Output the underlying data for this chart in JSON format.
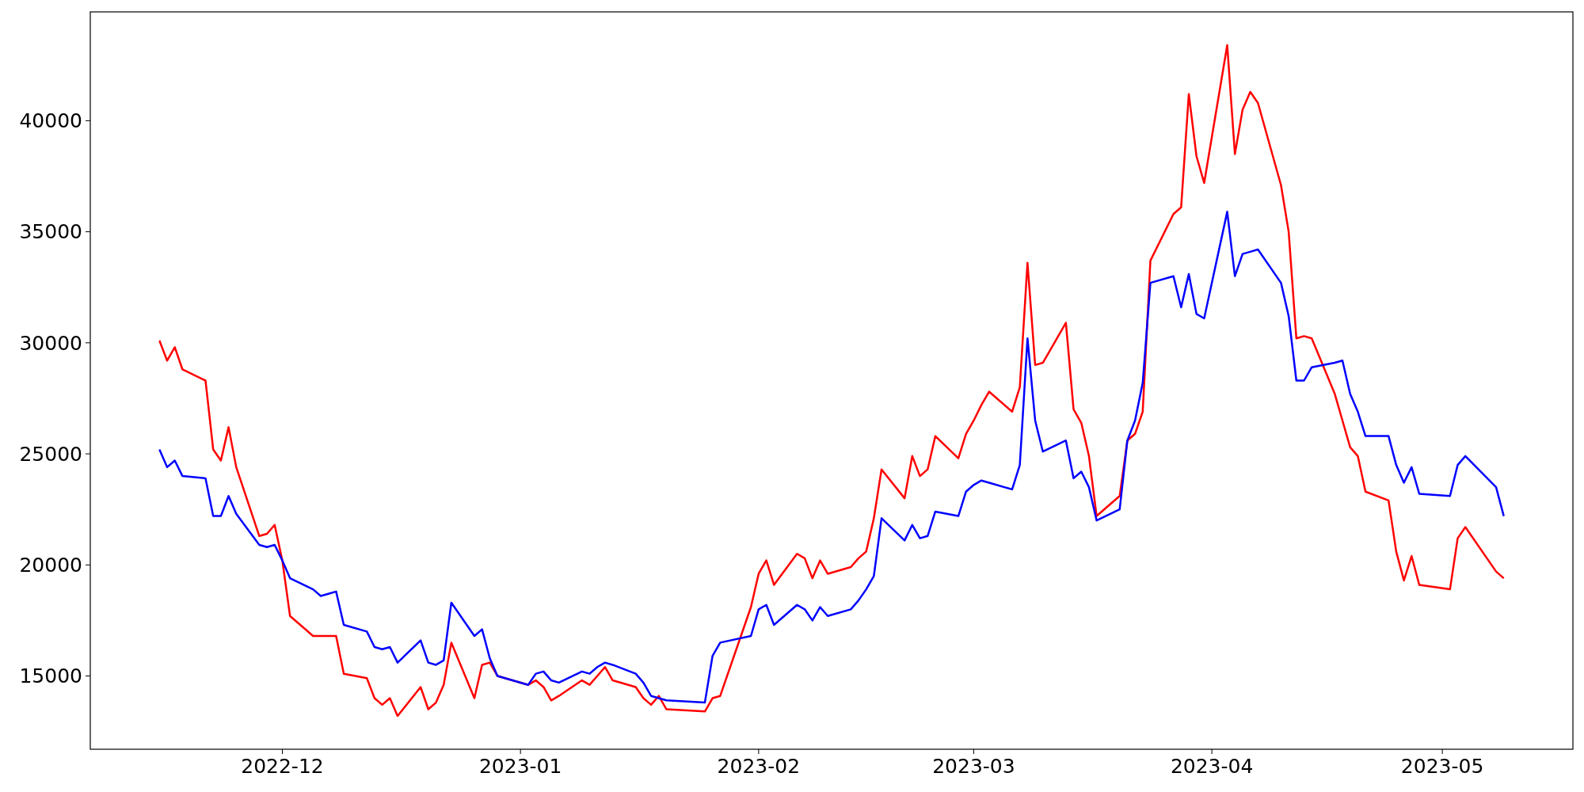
{
  "chart_data": {
    "type": "line",
    "x": [
      "2022-11-15",
      "2022-11-16",
      "2022-11-17",
      "2022-11-18",
      "2022-11-21",
      "2022-11-22",
      "2022-11-23",
      "2022-11-24",
      "2022-11-25",
      "2022-11-28",
      "2022-11-29",
      "2022-11-30",
      "2022-12-01",
      "2022-12-02",
      "2022-12-05",
      "2022-12-06",
      "2022-12-07",
      "2022-12-08",
      "2022-12-09",
      "2022-12-12",
      "2022-12-13",
      "2022-12-14",
      "2022-12-15",
      "2022-12-16",
      "2022-12-19",
      "2022-12-20",
      "2022-12-21",
      "2022-12-22",
      "2022-12-23",
      "2022-12-26",
      "2022-12-27",
      "2022-12-28",
      "2022-12-29",
      "2023-01-02",
      "2023-01-03",
      "2023-01-04",
      "2023-01-05",
      "2023-01-06",
      "2023-01-09",
      "2023-01-10",
      "2023-01-11",
      "2023-01-12",
      "2023-01-13",
      "2023-01-16",
      "2023-01-17",
      "2023-01-18",
      "2023-01-19",
      "2023-01-20",
      "2023-01-25",
      "2023-01-26",
      "2023-01-27",
      "2023-01-31",
      "2023-02-01",
      "2023-02-02",
      "2023-02-03",
      "2023-02-06",
      "2023-02-07",
      "2023-02-08",
      "2023-02-09",
      "2023-02-10",
      "2023-02-13",
      "2023-02-14",
      "2023-02-15",
      "2023-02-16",
      "2023-02-17",
      "2023-02-20",
      "2023-02-21",
      "2023-02-22",
      "2023-02-23",
      "2023-02-24",
      "2023-02-27",
      "2023-02-28",
      "2023-03-01",
      "2023-03-02",
      "2023-03-03",
      "2023-03-06",
      "2023-03-07",
      "2023-03-08",
      "2023-03-09",
      "2023-03-10",
      "2023-03-13",
      "2023-03-14",
      "2023-03-15",
      "2023-03-16",
      "2023-03-17",
      "2023-03-20",
      "2023-03-21",
      "2023-03-22",
      "2023-03-23",
      "2023-03-24",
      "2023-03-27",
      "2023-03-28",
      "2023-03-29",
      "2023-03-30",
      "2023-03-31",
      "2023-04-03",
      "2023-04-04",
      "2023-04-05",
      "2023-04-06",
      "2023-04-07",
      "2023-04-10",
      "2023-04-11",
      "2023-04-12",
      "2023-04-13",
      "2023-04-14",
      "2023-04-17",
      "2023-04-18",
      "2023-04-19",
      "2023-04-20",
      "2023-04-21",
      "2023-04-24",
      "2023-04-25",
      "2023-04-26",
      "2023-04-27",
      "2023-04-28",
      "2023-05-02",
      "2023-05-03",
      "2023-05-04",
      "2023-05-08",
      "2023-05-09"
    ],
    "series": [
      {
        "color": "#ff0000",
        "values": [
          30100,
          29200,
          29800,
          28800,
          28300,
          25200,
          24700,
          26200,
          24400,
          21300,
          21400,
          21800,
          20200,
          17700,
          16800,
          16800,
          16800,
          16800,
          15100,
          14900,
          14000,
          13700,
          14000,
          13200,
          14500,
          13500,
          13800,
          14600,
          16500,
          14000,
          15500,
          15600,
          15000,
          14600,
          14800,
          14500,
          13900,
          14100,
          14800,
          14600,
          15000,
          15400,
          14800,
          14500,
          14000,
          13700,
          14100,
          13500,
          13400,
          14000,
          14100,
          18100,
          19600,
          20200,
          19100,
          20500,
          20300,
          19400,
          20200,
          19600,
          19900,
          20300,
          20600,
          22100,
          24300,
          23000,
          24900,
          24000,
          24300,
          25800,
          24800,
          25900,
          26500,
          27200,
          27800,
          26900,
          28000,
          33600,
          29000,
          29100,
          30900,
          27000,
          26400,
          24900,
          22200,
          23100,
          25600,
          25900,
          26900,
          33700,
          35800,
          36100,
          41200,
          38400,
          37200,
          43400,
          38500,
          40500,
          41300,
          40800,
          37100,
          35000,
          30200,
          30300,
          30200,
          27700,
          26500,
          25300,
          24900,
          23300,
          22900,
          20600,
          19300,
          20400,
          19100,
          18900,
          21200,
          21700,
          19700,
          19400
        ]
      },
      {
        "color": "#0000ff",
        "values": [
          25200,
          24400,
          24700,
          24000,
          23900,
          22200,
          22200,
          23100,
          22300,
          20900,
          20800,
          20900,
          20200,
          19400,
          18900,
          18600,
          18700,
          18800,
          17300,
          17000,
          16300,
          16200,
          16300,
          15600,
          16600,
          15600,
          15500,
          15700,
          18300,
          16800,
          17100,
          15800,
          15000,
          14600,
          15100,
          15200,
          14800,
          14700,
          15200,
          15100,
          15400,
          15600,
          15500,
          15100,
          14700,
          14100,
          14000,
          13900,
          13800,
          15900,
          16500,
          16800,
          18000,
          18200,
          17300,
          18200,
          18000,
          17500,
          18100,
          17700,
          18000,
          18400,
          18900,
          19500,
          22100,
          21100,
          21800,
          21200,
          21300,
          22400,
          22200,
          23300,
          23600,
          23800,
          23700,
          23400,
          24500,
          30200,
          26500,
          25100,
          25600,
          23900,
          24200,
          23500,
          22000,
          22500,
          25600,
          26500,
          28200,
          32700,
          33000,
          31600,
          33100,
          31300,
          31100,
          35900,
          33000,
          34000,
          34100,
          34200,
          32700,
          31200,
          28300,
          28300,
          28900,
          29100,
          29200,
          27700,
          26900,
          25800,
          25800,
          24500,
          23700,
          24400,
          23200,
          23100,
          24500,
          24900,
          23500,
          22200
        ]
      }
    ],
    "xlim": [
      "2022-11-06",
      "2023-05-18"
    ],
    "xticks": [
      {
        "value": "2022-12-01",
        "label": "2022-12"
      },
      {
        "value": "2023-01-01",
        "label": "2023-01"
      },
      {
        "value": "2023-02-01",
        "label": "2023-02"
      },
      {
        "value": "2023-03-01",
        "label": "2023-03"
      },
      {
        "value": "2023-04-01",
        "label": "2023-04"
      },
      {
        "value": "2023-05-01",
        "label": "2023-05"
      }
    ],
    "ylim": [
      11700,
      44900
    ],
    "yticks": [
      15000,
      20000,
      25000,
      30000,
      35000,
      40000
    ],
    "grid": false,
    "marker": "none",
    "line_style": "solid"
  }
}
